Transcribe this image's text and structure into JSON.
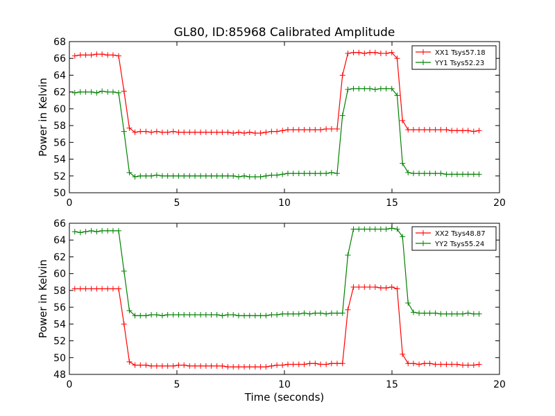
{
  "chart_data": [
    {
      "type": "line",
      "title": "GL80, ID:85968 Calibrated Amplitude",
      "xlabel": "",
      "ylabel": "Power in Kelvin",
      "xlim": [
        0,
        20
      ],
      "ylim": [
        50,
        68
      ],
      "xticks": [
        "0",
        "5",
        "10",
        "15",
        "20"
      ],
      "yticks": [
        "50",
        "52",
        "54",
        "56",
        "58",
        "60",
        "62",
        "64",
        "66",
        "68"
      ],
      "legend_position": "top-right",
      "grid": false,
      "x": [
        0.25,
        0.51,
        0.76,
        1.02,
        1.27,
        1.52,
        1.78,
        2.03,
        2.29,
        2.54,
        2.79,
        3.05,
        3.3,
        3.56,
        3.81,
        4.06,
        4.32,
        4.57,
        4.83,
        5.08,
        5.33,
        5.59,
        5.84,
        6.1,
        6.35,
        6.6,
        6.86,
        7.11,
        7.37,
        7.62,
        7.87,
        8.13,
        8.38,
        8.64,
        8.89,
        9.14,
        9.4,
        9.65,
        9.91,
        10.16,
        10.41,
        10.67,
        10.92,
        11.18,
        11.43,
        11.68,
        11.94,
        12.19,
        12.45,
        12.7,
        12.95,
        13.21,
        13.46,
        13.72,
        13.97,
        14.22,
        14.48,
        14.73,
        14.99,
        15.24,
        15.49,
        15.75,
        16.0,
        16.26,
        16.51,
        16.76,
        17.02,
        17.27,
        17.53,
        17.78,
        18.03,
        18.29,
        18.54,
        18.8,
        19.05
      ],
      "series": [
        {
          "name": "XX1 Tsys57.18",
          "color": "#ff0000",
          "values": [
            66.3,
            66.4,
            66.4,
            66.4,
            66.5,
            66.5,
            66.4,
            66.4,
            66.3,
            62.1,
            57.7,
            57.2,
            57.3,
            57.3,
            57.2,
            57.3,
            57.2,
            57.2,
            57.3,
            57.2,
            57.2,
            57.2,
            57.2,
            57.2,
            57.2,
            57.2,
            57.2,
            57.2,
            57.2,
            57.1,
            57.2,
            57.1,
            57.2,
            57.1,
            57.1,
            57.2,
            57.3,
            57.3,
            57.4,
            57.5,
            57.5,
            57.5,
            57.5,
            57.5,
            57.5,
            57.5,
            57.6,
            57.6,
            57.6,
            64.0,
            66.6,
            66.7,
            66.7,
            66.6,
            66.7,
            66.7,
            66.6,
            66.6,
            66.7,
            66.0,
            58.6,
            57.5,
            57.5,
            57.5,
            57.5,
            57.5,
            57.5,
            57.5,
            57.5,
            57.4,
            57.4,
            57.4,
            57.4,
            57.3,
            57.4
          ]
        },
        {
          "name": "YY1 Tsys52.23",
          "color": "#008000",
          "values": [
            61.9,
            62.0,
            62.0,
            62.0,
            61.9,
            62.1,
            62.0,
            62.0,
            61.9,
            57.3,
            52.4,
            51.9,
            52.0,
            52.0,
            52.0,
            52.1,
            52.0,
            52.0,
            52.0,
            52.0,
            52.0,
            52.0,
            52.0,
            52.0,
            52.0,
            52.0,
            52.0,
            52.0,
            52.0,
            52.0,
            51.9,
            52.0,
            51.9,
            51.9,
            51.9,
            52.0,
            52.1,
            52.1,
            52.2,
            52.3,
            52.3,
            52.3,
            52.3,
            52.3,
            52.3,
            52.3,
            52.3,
            52.4,
            52.3,
            59.2,
            62.3,
            62.4,
            62.4,
            62.4,
            62.4,
            62.3,
            62.4,
            62.4,
            62.4,
            61.6,
            53.5,
            52.4,
            52.3,
            52.3,
            52.3,
            52.3,
            52.3,
            52.3,
            52.2,
            52.2,
            52.2,
            52.2,
            52.2,
            52.2,
            52.2
          ]
        }
      ]
    },
    {
      "type": "line",
      "title": "",
      "xlabel": "Time (seconds)",
      "ylabel": "Power in Kelvin",
      "xlim": [
        0,
        20
      ],
      "ylim": [
        48,
        66
      ],
      "xticks": [
        "0",
        "5",
        "10",
        "15",
        "20"
      ],
      "yticks": [
        "48",
        "50",
        "52",
        "54",
        "56",
        "58",
        "60",
        "62",
        "64",
        "66"
      ],
      "legend_position": "top-right",
      "grid": false,
      "x": [
        0.25,
        0.51,
        0.76,
        1.02,
        1.27,
        1.52,
        1.78,
        2.03,
        2.29,
        2.54,
        2.79,
        3.05,
        3.3,
        3.56,
        3.81,
        4.06,
        4.32,
        4.57,
        4.83,
        5.08,
        5.33,
        5.59,
        5.84,
        6.1,
        6.35,
        6.6,
        6.86,
        7.11,
        7.37,
        7.62,
        7.87,
        8.13,
        8.38,
        8.64,
        8.89,
        9.14,
        9.4,
        9.65,
        9.91,
        10.16,
        10.41,
        10.67,
        10.92,
        11.18,
        11.43,
        11.68,
        11.94,
        12.19,
        12.45,
        12.7,
        12.95,
        13.21,
        13.46,
        13.72,
        13.97,
        14.22,
        14.48,
        14.73,
        14.99,
        15.24,
        15.49,
        15.75,
        16.0,
        16.26,
        16.51,
        16.76,
        17.02,
        17.27,
        17.53,
        17.78,
        18.03,
        18.29,
        18.54,
        18.8,
        19.05
      ],
      "series": [
        {
          "name": "XX2 Tsys48.87",
          "color": "#ff0000",
          "values": [
            58.2,
            58.2,
            58.2,
            58.2,
            58.2,
            58.2,
            58.2,
            58.2,
            58.2,
            54.0,
            49.5,
            49.1,
            49.1,
            49.1,
            49.0,
            49.0,
            49.0,
            49.0,
            49.0,
            49.1,
            49.1,
            49.0,
            49.0,
            49.0,
            49.0,
            49.0,
            49.0,
            49.0,
            48.9,
            48.9,
            48.9,
            48.9,
            48.9,
            48.9,
            48.9,
            48.9,
            49.0,
            49.1,
            49.1,
            49.2,
            49.2,
            49.2,
            49.2,
            49.3,
            49.3,
            49.2,
            49.2,
            49.3,
            49.3,
            49.3,
            55.7,
            58.4,
            58.4,
            58.4,
            58.4,
            58.4,
            58.3,
            58.3,
            58.4,
            58.2,
            50.4,
            49.3,
            49.3,
            49.2,
            49.3,
            49.3,
            49.2,
            49.2,
            49.2,
            49.2,
            49.2,
            49.1,
            49.1,
            49.1,
            49.2
          ]
        },
        {
          "name": "YY2 Tsys55.24",
          "color": "#008000",
          "values": [
            65.0,
            64.9,
            65.0,
            65.1,
            65.0,
            65.1,
            65.1,
            65.1,
            65.1,
            60.3,
            55.6,
            55.0,
            55.0,
            55.0,
            55.1,
            55.1,
            55.0,
            55.1,
            55.1,
            55.1,
            55.1,
            55.1,
            55.1,
            55.1,
            55.1,
            55.1,
            55.1,
            55.0,
            55.1,
            55.1,
            55.0,
            55.0,
            55.0,
            55.0,
            55.0,
            55.0,
            55.1,
            55.1,
            55.2,
            55.2,
            55.2,
            55.2,
            55.3,
            55.2,
            55.3,
            55.3,
            55.2,
            55.3,
            55.3,
            55.3,
            62.2,
            65.3,
            65.3,
            65.3,
            65.3,
            65.3,
            65.3,
            65.3,
            65.4,
            65.3,
            64.4,
            56.5,
            55.4,
            55.3,
            55.3,
            55.3,
            55.3,
            55.2,
            55.2,
            55.2,
            55.2,
            55.2,
            55.3,
            55.2,
            55.2
          ]
        }
      ]
    }
  ]
}
